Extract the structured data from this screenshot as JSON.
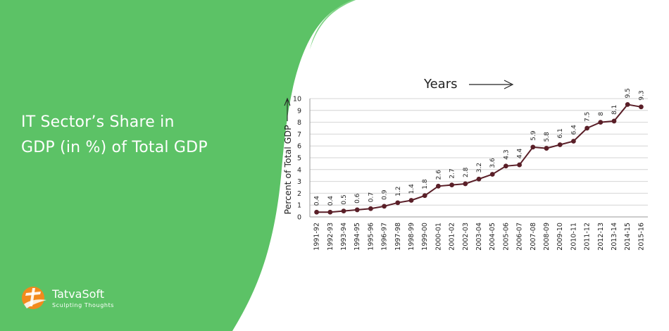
{
  "headline": {
    "line1": "IT Sector’s Share in",
    "line2": "GDP (in %) of Total GDP"
  },
  "brand": {
    "name": "TatvaSoft",
    "tagline": "Sculpting Thoughts"
  },
  "colors": {
    "background": "#5cc266",
    "panel": "#ffffff",
    "line": "#5a1f28",
    "accent_orange": "#f28a1c"
  },
  "chart_data": {
    "type": "line",
    "title": "Years",
    "xlabel": "Years",
    "ylabel": "Percent of Total GDP",
    "ylim": [
      0,
      10
    ],
    "yticks": [
      0,
      1,
      2,
      3,
      4,
      5,
      6,
      7,
      8,
      9,
      10
    ],
    "grid": true,
    "legend": "none",
    "categories": [
      "1991-92",
      "1992-93",
      "1993-94",
      "1994-95",
      "1995-96",
      "1996-97",
      "1997-98",
      "1998-99",
      "1999-00",
      "2000-01",
      "2001-02",
      "2002-03",
      "2003-04",
      "2004-05",
      "2005-06",
      "2006-07",
      "2007-08",
      "2008-09",
      "2009-10",
      "2010-11",
      "2011-12",
      "2012-13",
      "2013-14",
      "2014-15",
      "2015-16"
    ],
    "series": [
      {
        "values": [
          0.4,
          0.4,
          0.5,
          0.6,
          0.7,
          0.9,
          1.2,
          1.4,
          1.8,
          2.6,
          2.7,
          2.8,
          3.2,
          3.6,
          4.3,
          4.4,
          5.9,
          5.8,
          6.1,
          6.4,
          7.5,
          8,
          8.1,
          9.5,
          9.3
        ],
        "labels": [
          "0.4",
          "0.4",
          "0.5",
          "0.6",
          "0.7",
          "0.9",
          "1.2",
          "1.4",
          "1.8",
          "2.6",
          "2.7",
          "2.8",
          "3.2",
          "3.6",
          "4.3",
          "4.4",
          "5.9",
          "5.8",
          "6.1",
          "6.4",
          "7.5",
          "8",
          "8.1",
          "9.5",
          "9.3"
        ]
      }
    ]
  }
}
